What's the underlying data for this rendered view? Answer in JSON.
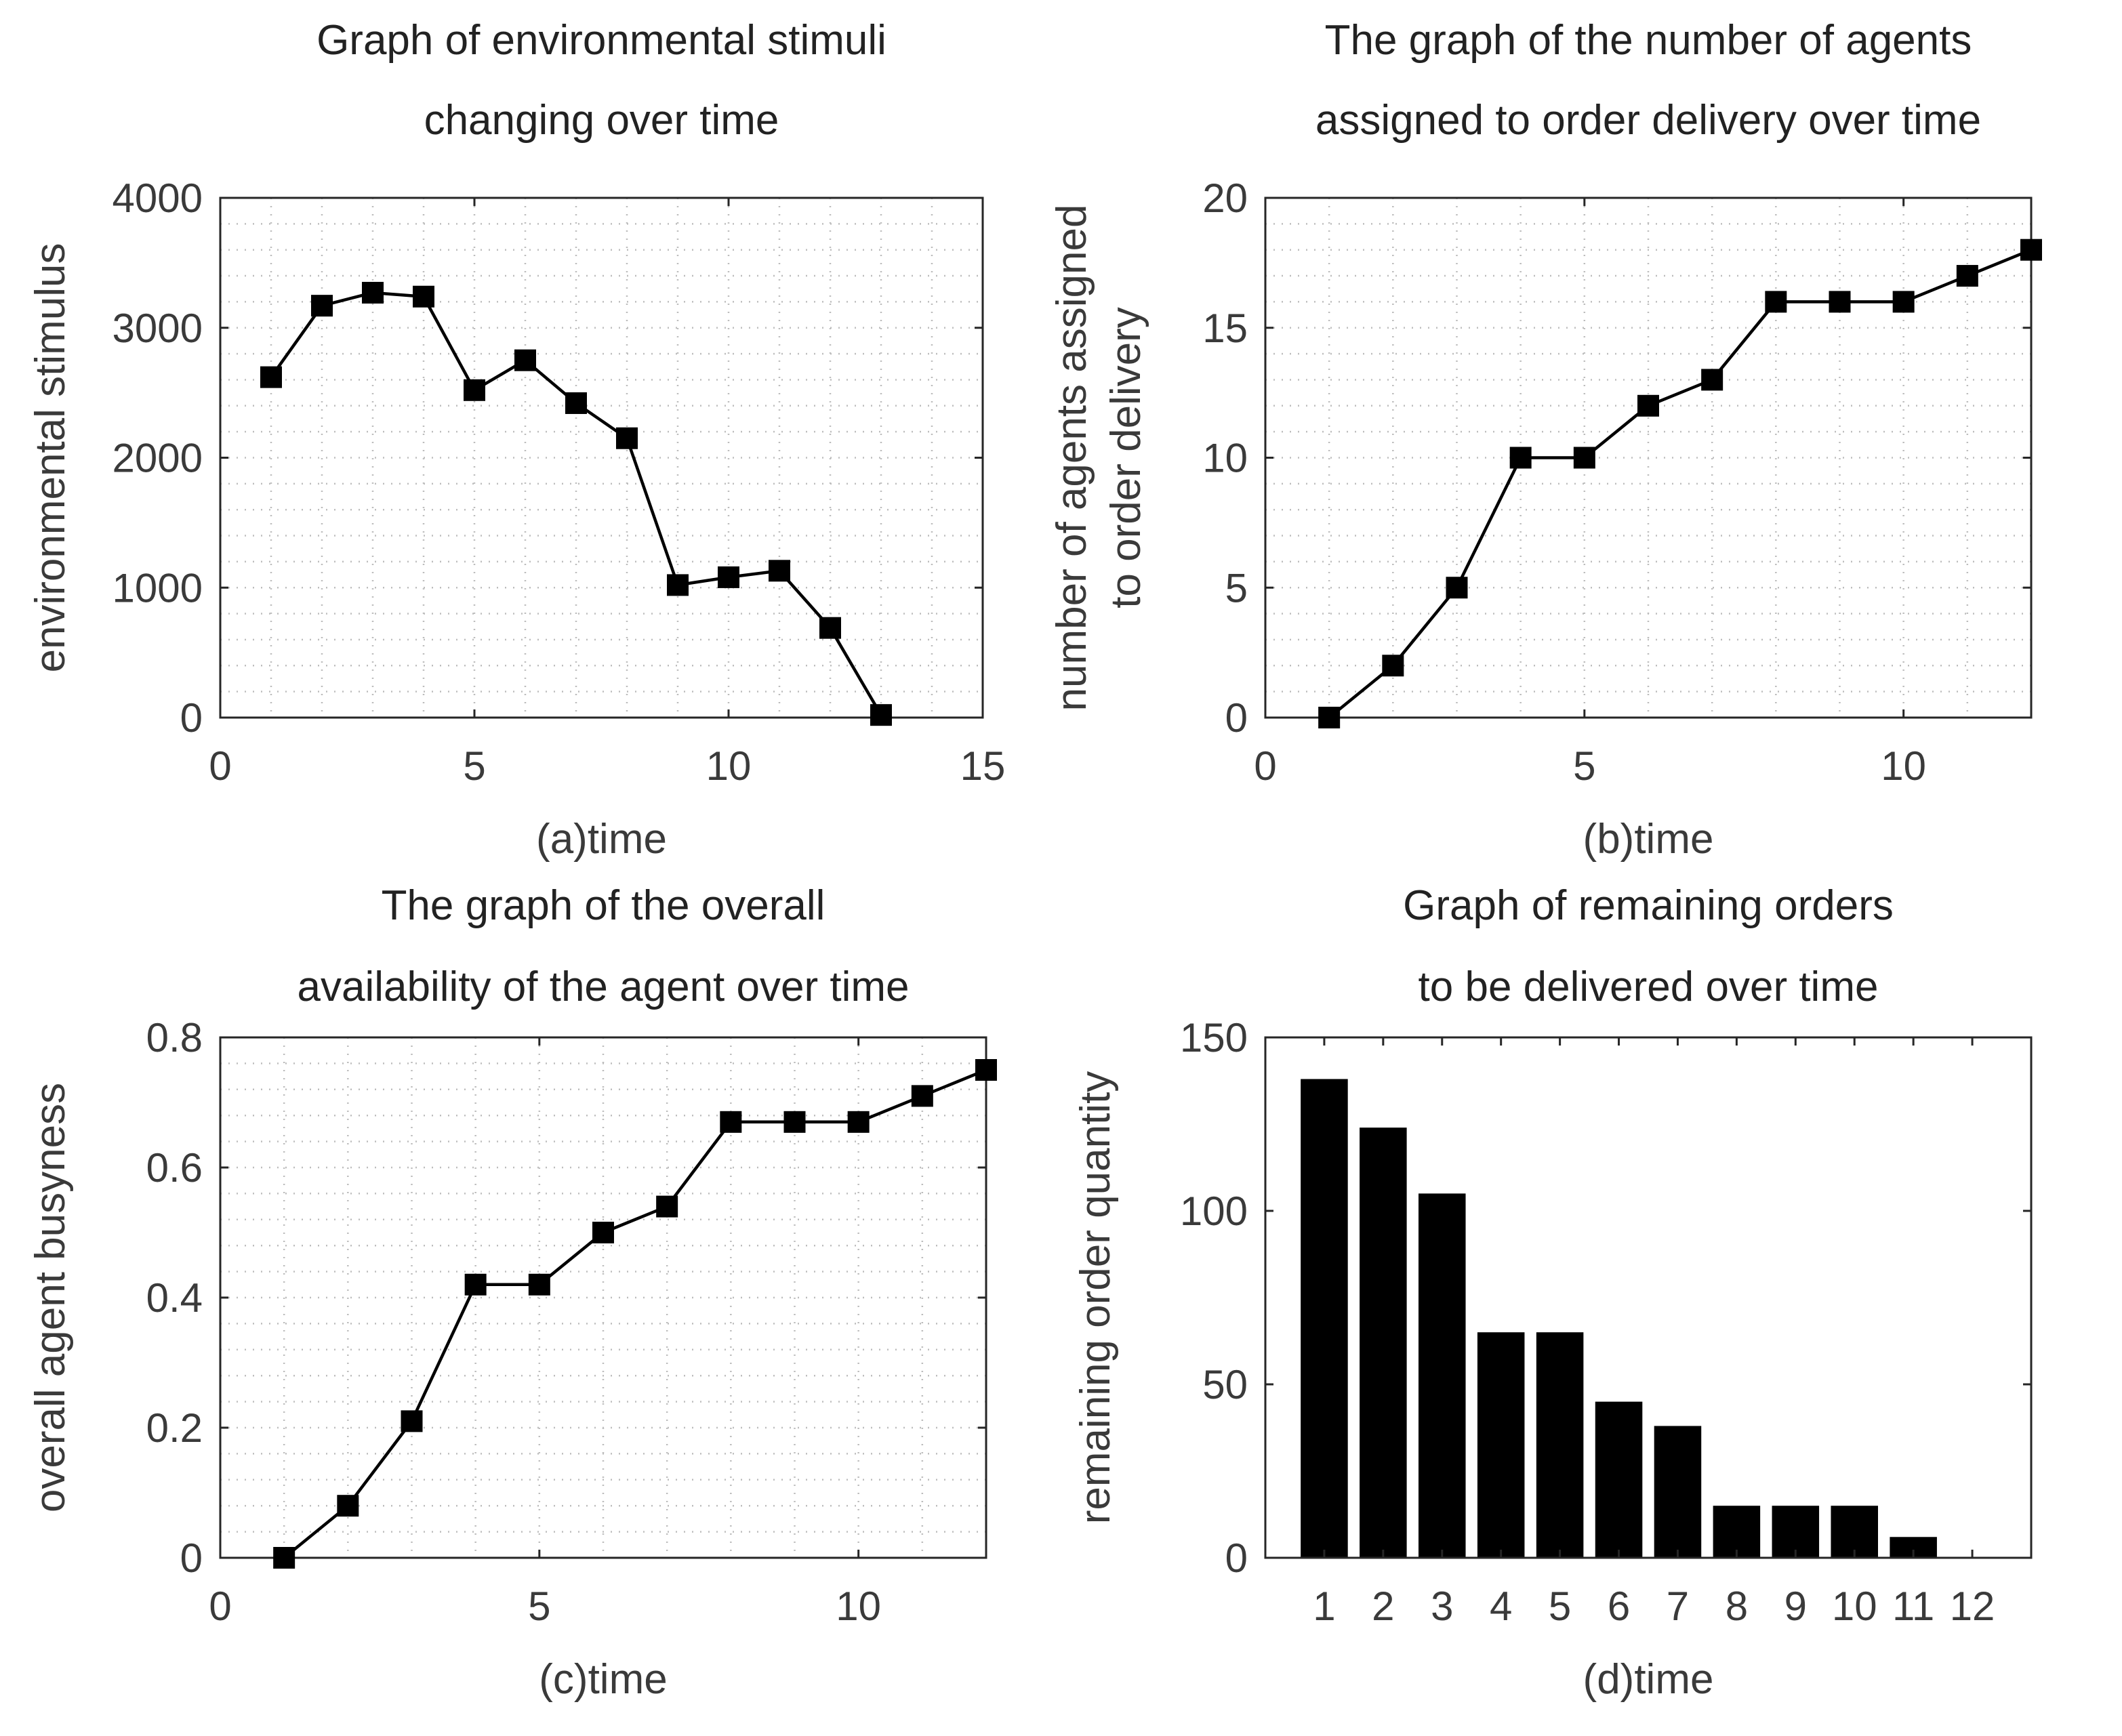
{
  "colors": {
    "ink": "#000000",
    "axis": "#262626",
    "text": "#3a3a3a",
    "grid": "#bdbdbd"
  },
  "chart_data": [
    {
      "id": "a",
      "type": "line",
      "title": [
        "Graph of environmental stimuli",
        "changing over time"
      ],
      "xlabel": "(a)time",
      "ylabel": [
        "environmental stimulus"
      ],
      "xlim": [
        0,
        15
      ],
      "ylim": [
        0,
        4000
      ],
      "xticks": [
        0,
        5,
        10,
        15
      ],
      "yticks": [
        0,
        1000,
        2000,
        3000,
        4000
      ],
      "marker": "square",
      "grid": true,
      "minor_grid": true,
      "x": [
        1,
        2,
        3,
        4,
        5,
        6,
        7,
        8,
        9,
        10,
        11,
        12,
        13
      ],
      "values": [
        2620,
        3170,
        3270,
        3240,
        2520,
        2750,
        2420,
        2150,
        1020,
        1080,
        1130,
        690,
        20
      ]
    },
    {
      "id": "b",
      "type": "line",
      "title": [
        "The graph of the number of agents",
        "assigned to order delivery over time"
      ],
      "xlabel": "(b)time",
      "ylabel": [
        "number of agents assigned",
        "to order delivery"
      ],
      "xlim": [
        0,
        12
      ],
      "ylim": [
        0,
        20
      ],
      "xticks": [
        0,
        5,
        10
      ],
      "yticks": [
        0,
        5,
        10,
        15,
        20
      ],
      "marker": "square",
      "grid": true,
      "minor_grid": true,
      "x": [
        1,
        2,
        3,
        4,
        5,
        6,
        7,
        8,
        9,
        10,
        11,
        12
      ],
      "values": [
        0,
        2,
        5,
        10,
        10,
        12,
        13,
        16,
        16,
        16,
        17,
        18
      ]
    },
    {
      "id": "c",
      "type": "line",
      "title": [
        "The graph of the overall",
        "availability of the agent over time"
      ],
      "xlabel": "(c)time",
      "ylabel": [
        "overall agent busyness"
      ],
      "xlim": [
        0,
        12
      ],
      "ylim": [
        0,
        0.8
      ],
      "xticks": [
        0,
        5,
        10
      ],
      "yticks": [
        0,
        0.2,
        0.4,
        0.6,
        0.8
      ],
      "marker": "square",
      "grid": true,
      "minor_grid": true,
      "x": [
        1,
        2,
        3,
        4,
        5,
        6,
        7,
        8,
        9,
        10,
        11,
        12
      ],
      "values": [
        0,
        0.08,
        0.21,
        0.42,
        0.42,
        0.5,
        0.54,
        0.67,
        0.67,
        0.67,
        0.71,
        0.75
      ]
    },
    {
      "id": "d",
      "type": "bar",
      "title": [
        "Graph of remaining orders",
        "to be delivered over time"
      ],
      "xlabel": "(d)time",
      "ylabel": [
        "remaining order quantity"
      ],
      "xlim": [
        0,
        13
      ],
      "ylim": [
        0,
        150
      ],
      "xticks": [
        1,
        2,
        3,
        4,
        5,
        6,
        7,
        8,
        9,
        10,
        11,
        12
      ],
      "xticklabels": [
        "1",
        "2",
        "3",
        "4",
        "5",
        "6",
        "7",
        "8",
        "9",
        "10",
        "11",
        "12"
      ],
      "yticks": [
        0,
        50,
        100,
        150
      ],
      "grid": false,
      "categories": [
        "1",
        "2",
        "3",
        "4",
        "5",
        "6",
        "7",
        "8",
        "9",
        "10",
        "11",
        "12"
      ],
      "values": [
        138,
        124,
        105,
        65,
        65,
        45,
        38,
        15,
        15,
        15,
        6,
        0
      ]
    }
  ]
}
